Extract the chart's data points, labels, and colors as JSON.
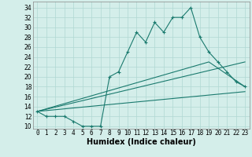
{
  "xlabel": "Humidex (Indice chaleur)",
  "bg_color": "#d4eeea",
  "line_color": "#1a7a6e",
  "grid_color": "#b0d8d2",
  "xlim": [
    -0.5,
    23.5
  ],
  "ylim": [
    9.5,
    35.2
  ],
  "xticks": [
    0,
    1,
    2,
    3,
    4,
    5,
    6,
    7,
    8,
    9,
    10,
    11,
    12,
    13,
    14,
    15,
    16,
    17,
    18,
    19,
    20,
    21,
    22,
    23
  ],
  "yticks": [
    10,
    12,
    14,
    16,
    18,
    20,
    22,
    24,
    26,
    28,
    30,
    32,
    34
  ],
  "main_x": [
    0,
    1,
    2,
    3,
    4,
    5,
    6,
    7,
    8,
    9,
    10,
    11,
    12,
    13,
    14,
    15,
    16,
    17,
    18,
    19,
    20,
    21,
    22,
    23
  ],
  "main_y": [
    13,
    12,
    12,
    12,
    11,
    10,
    10,
    10,
    20,
    21,
    25,
    29,
    27,
    31,
    29,
    32,
    32,
    34,
    28,
    25,
    23,
    21,
    19,
    18
  ],
  "line2_x": [
    0,
    23
  ],
  "line2_y": [
    13,
    17
  ],
  "line3_x": [
    0,
    23
  ],
  "line3_y": [
    13,
    23
  ],
  "line4_x": [
    0,
    19,
    23
  ],
  "line4_y": [
    13,
    23,
    18
  ],
  "xlabel_fontsize": 7,
  "tick_fontsize": 5.5
}
